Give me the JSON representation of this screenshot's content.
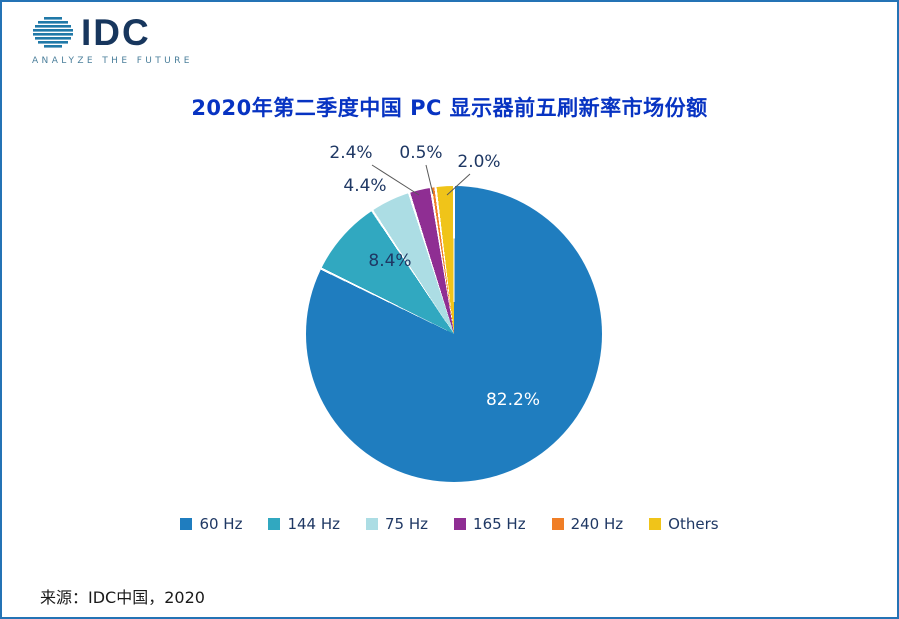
{
  "brand": {
    "logo_text": "IDC",
    "tagline": "ANALYZE THE FUTURE"
  },
  "header": {
    "title": "2020年第二季度中国 PC 显示器前五刷新率市场份额"
  },
  "footer": {
    "source": "来源：IDC中国，2020"
  },
  "colors": {
    "frame_border": "#2473B5",
    "title_blue": "#0733C2",
    "label_navy": "#1F3864",
    "inside_label_white": "#ffffff",
    "leader_line": "#595959"
  },
  "chart_data": {
    "type": "pie",
    "title": "2020年第二季度中国 PC 显示器前五刷新率市场份额",
    "labels": [
      "60 Hz",
      "144 Hz",
      "75 Hz",
      "165 Hz",
      "240 Hz",
      "Others"
    ],
    "values": [
      82.2,
      8.4,
      4.4,
      2.4,
      0.5,
      2.0
    ],
    "display_values": [
      "82.2%",
      "8.4%",
      "4.4%",
      "2.4%",
      "0.5%",
      "2.0%"
    ],
    "colors": [
      "#1F7DBF",
      "#31A8C0",
      "#ACDDE4",
      "#8F2E93",
      "#F07E26",
      "#F0C419"
    ],
    "units": "%",
    "start_angle_deg": 0,
    "direction": "clockwise",
    "legend_position": "bottom",
    "source": "来源：IDC中国，2020"
  }
}
